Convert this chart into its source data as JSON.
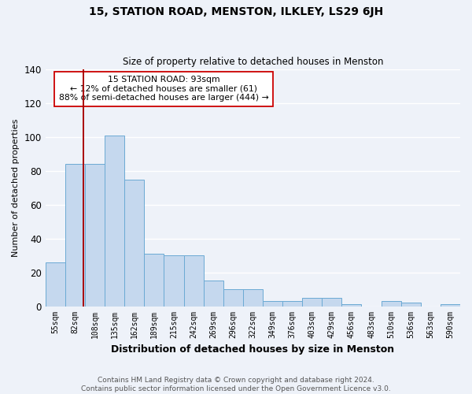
{
  "title": "15, STATION ROAD, MENSTON, ILKLEY, LS29 6JH",
  "subtitle": "Size of property relative to detached houses in Menston",
  "xlabel": "Distribution of detached houses by size in Menston",
  "ylabel": "Number of detached properties",
  "categories": [
    "55sqm",
    "82sqm",
    "108sqm",
    "135sqm",
    "162sqm",
    "189sqm",
    "215sqm",
    "242sqm",
    "269sqm",
    "296sqm",
    "322sqm",
    "349sqm",
    "376sqm",
    "403sqm",
    "429sqm",
    "456sqm",
    "483sqm",
    "510sqm",
    "536sqm",
    "563sqm",
    "590sqm"
  ],
  "values": [
    26,
    84,
    84,
    101,
    75,
    31,
    30,
    30,
    15,
    10,
    10,
    3,
    3,
    5,
    5,
    1,
    0,
    3,
    2,
    0,
    1
  ],
  "bar_color": "#c5d8ee",
  "bar_edge_color": "#6baad4",
  "marker_line_color": "#aa0000",
  "marker_label": "15 STATION ROAD: 93sqm",
  "annotation_line1": "← 12% of detached houses are smaller (61)",
  "annotation_line2": "88% of semi-detached houses are larger (444) →",
  "footer1": "Contains HM Land Registry data © Crown copyright and database right 2024.",
  "footer2": "Contains public sector information licensed under the Open Government Licence v3.0.",
  "ylim": [
    0,
    140
  ],
  "yticks": [
    0,
    20,
    40,
    60,
    80,
    100,
    120,
    140
  ],
  "background_color": "#eef2f9",
  "plot_bg_color": "#eef2f9",
  "annotation_box_facecolor": "#ffffff",
  "annotation_box_edgecolor": "#cc0000",
  "grid_color": "#ffffff"
}
